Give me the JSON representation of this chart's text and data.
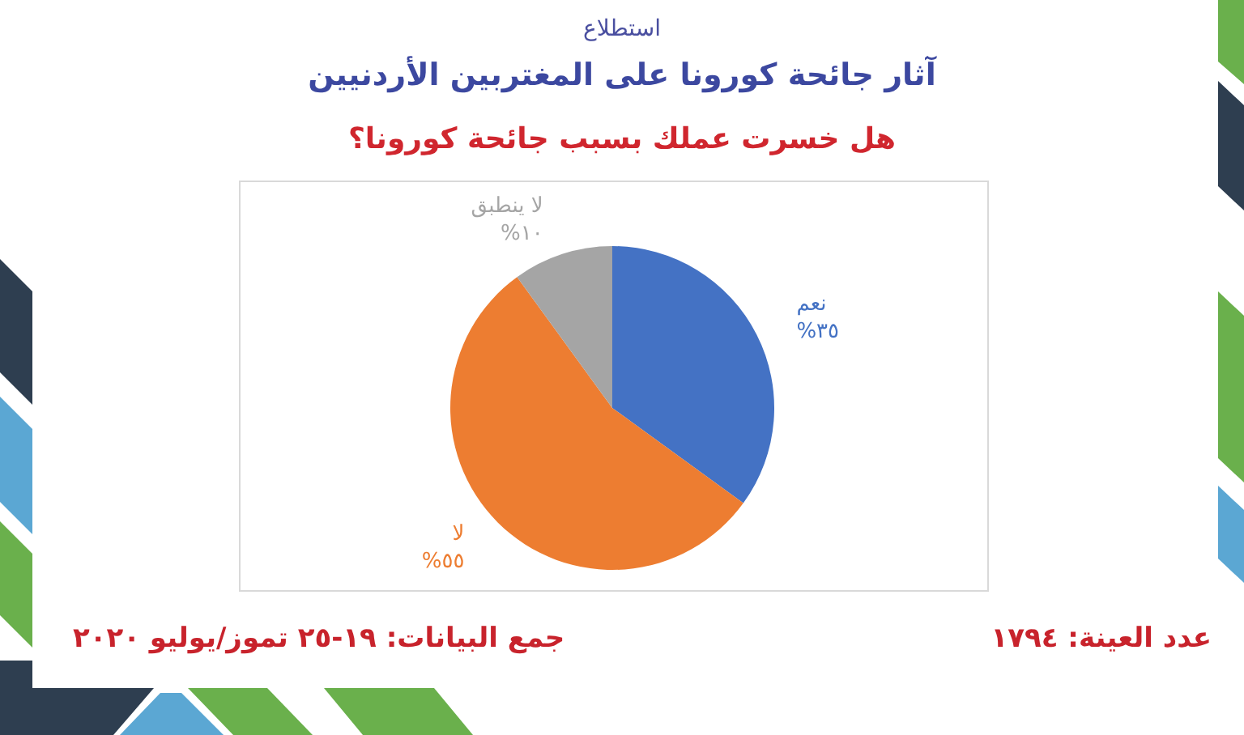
{
  "chart_data": {
    "type": "pie",
    "title": "آثار جائحة كورونا على المغتربين الأردنيين",
    "subtitle": "هل خسرت عملك بسبب جائحة كورونا؟",
    "categories": [
      "نعم",
      "لا",
      "لا ينطبق"
    ],
    "values": [
      35,
      55,
      10
    ],
    "colors": [
      "#4472c4",
      "#ed7d31",
      "#a5a5a5"
    ],
    "value_labels": [
      "٣٥%",
      "٥٥%",
      "١٠%"
    ],
    "annotations": [
      "استطلاع",
      "عدد العينة: ١٧٩٤",
      "جمع البيانات: ١٩-٢٥ تموز/يوليو ٢٠٢٠"
    ],
    "legend": false
  }
}
